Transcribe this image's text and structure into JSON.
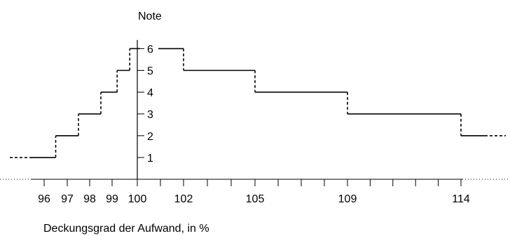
{
  "chart_data": {
    "type": "line",
    "title": "",
    "ylabel": "Note",
    "xlabel": "Deckungsgrad der Aufwand, in %",
    "ylim": [
      0,
      6
    ],
    "y_ticks": [
      1,
      2,
      3,
      4,
      5,
      6
    ],
    "x_tick_labels": [
      96,
      97,
      98,
      99,
      100,
      102,
      105,
      109,
      114
    ],
    "x_minor_ticks": [
      96,
      97,
      98,
      99,
      100,
      101,
      102,
      103,
      104,
      105,
      106,
      107,
      108,
      109,
      110,
      111,
      112,
      113,
      114
    ],
    "grid": false,
    "line_style": "step",
    "steps": [
      {
        "note": 1,
        "x_from": 95.5,
        "x_to": 96.5
      },
      {
        "note": 2,
        "x_from": 96.5,
        "x_to": 97.5
      },
      {
        "note": 3,
        "x_from": 97.5,
        "x_to": 98.5
      },
      {
        "note": 4,
        "x_from": 98.5,
        "x_to": 99.2
      },
      {
        "note": 5,
        "x_from": 99.2,
        "x_to": 99.7
      },
      {
        "note": 6,
        "x_from": 99.7,
        "x_to": 102
      },
      {
        "note": 5,
        "x_from": 102,
        "x_to": 105
      },
      {
        "note": 4,
        "x_from": 105,
        "x_to": 109
      },
      {
        "note": 3,
        "x_from": 109,
        "x_to": 114
      },
      {
        "note": 2,
        "x_from": 114,
        "x_to": 115
      }
    ]
  }
}
